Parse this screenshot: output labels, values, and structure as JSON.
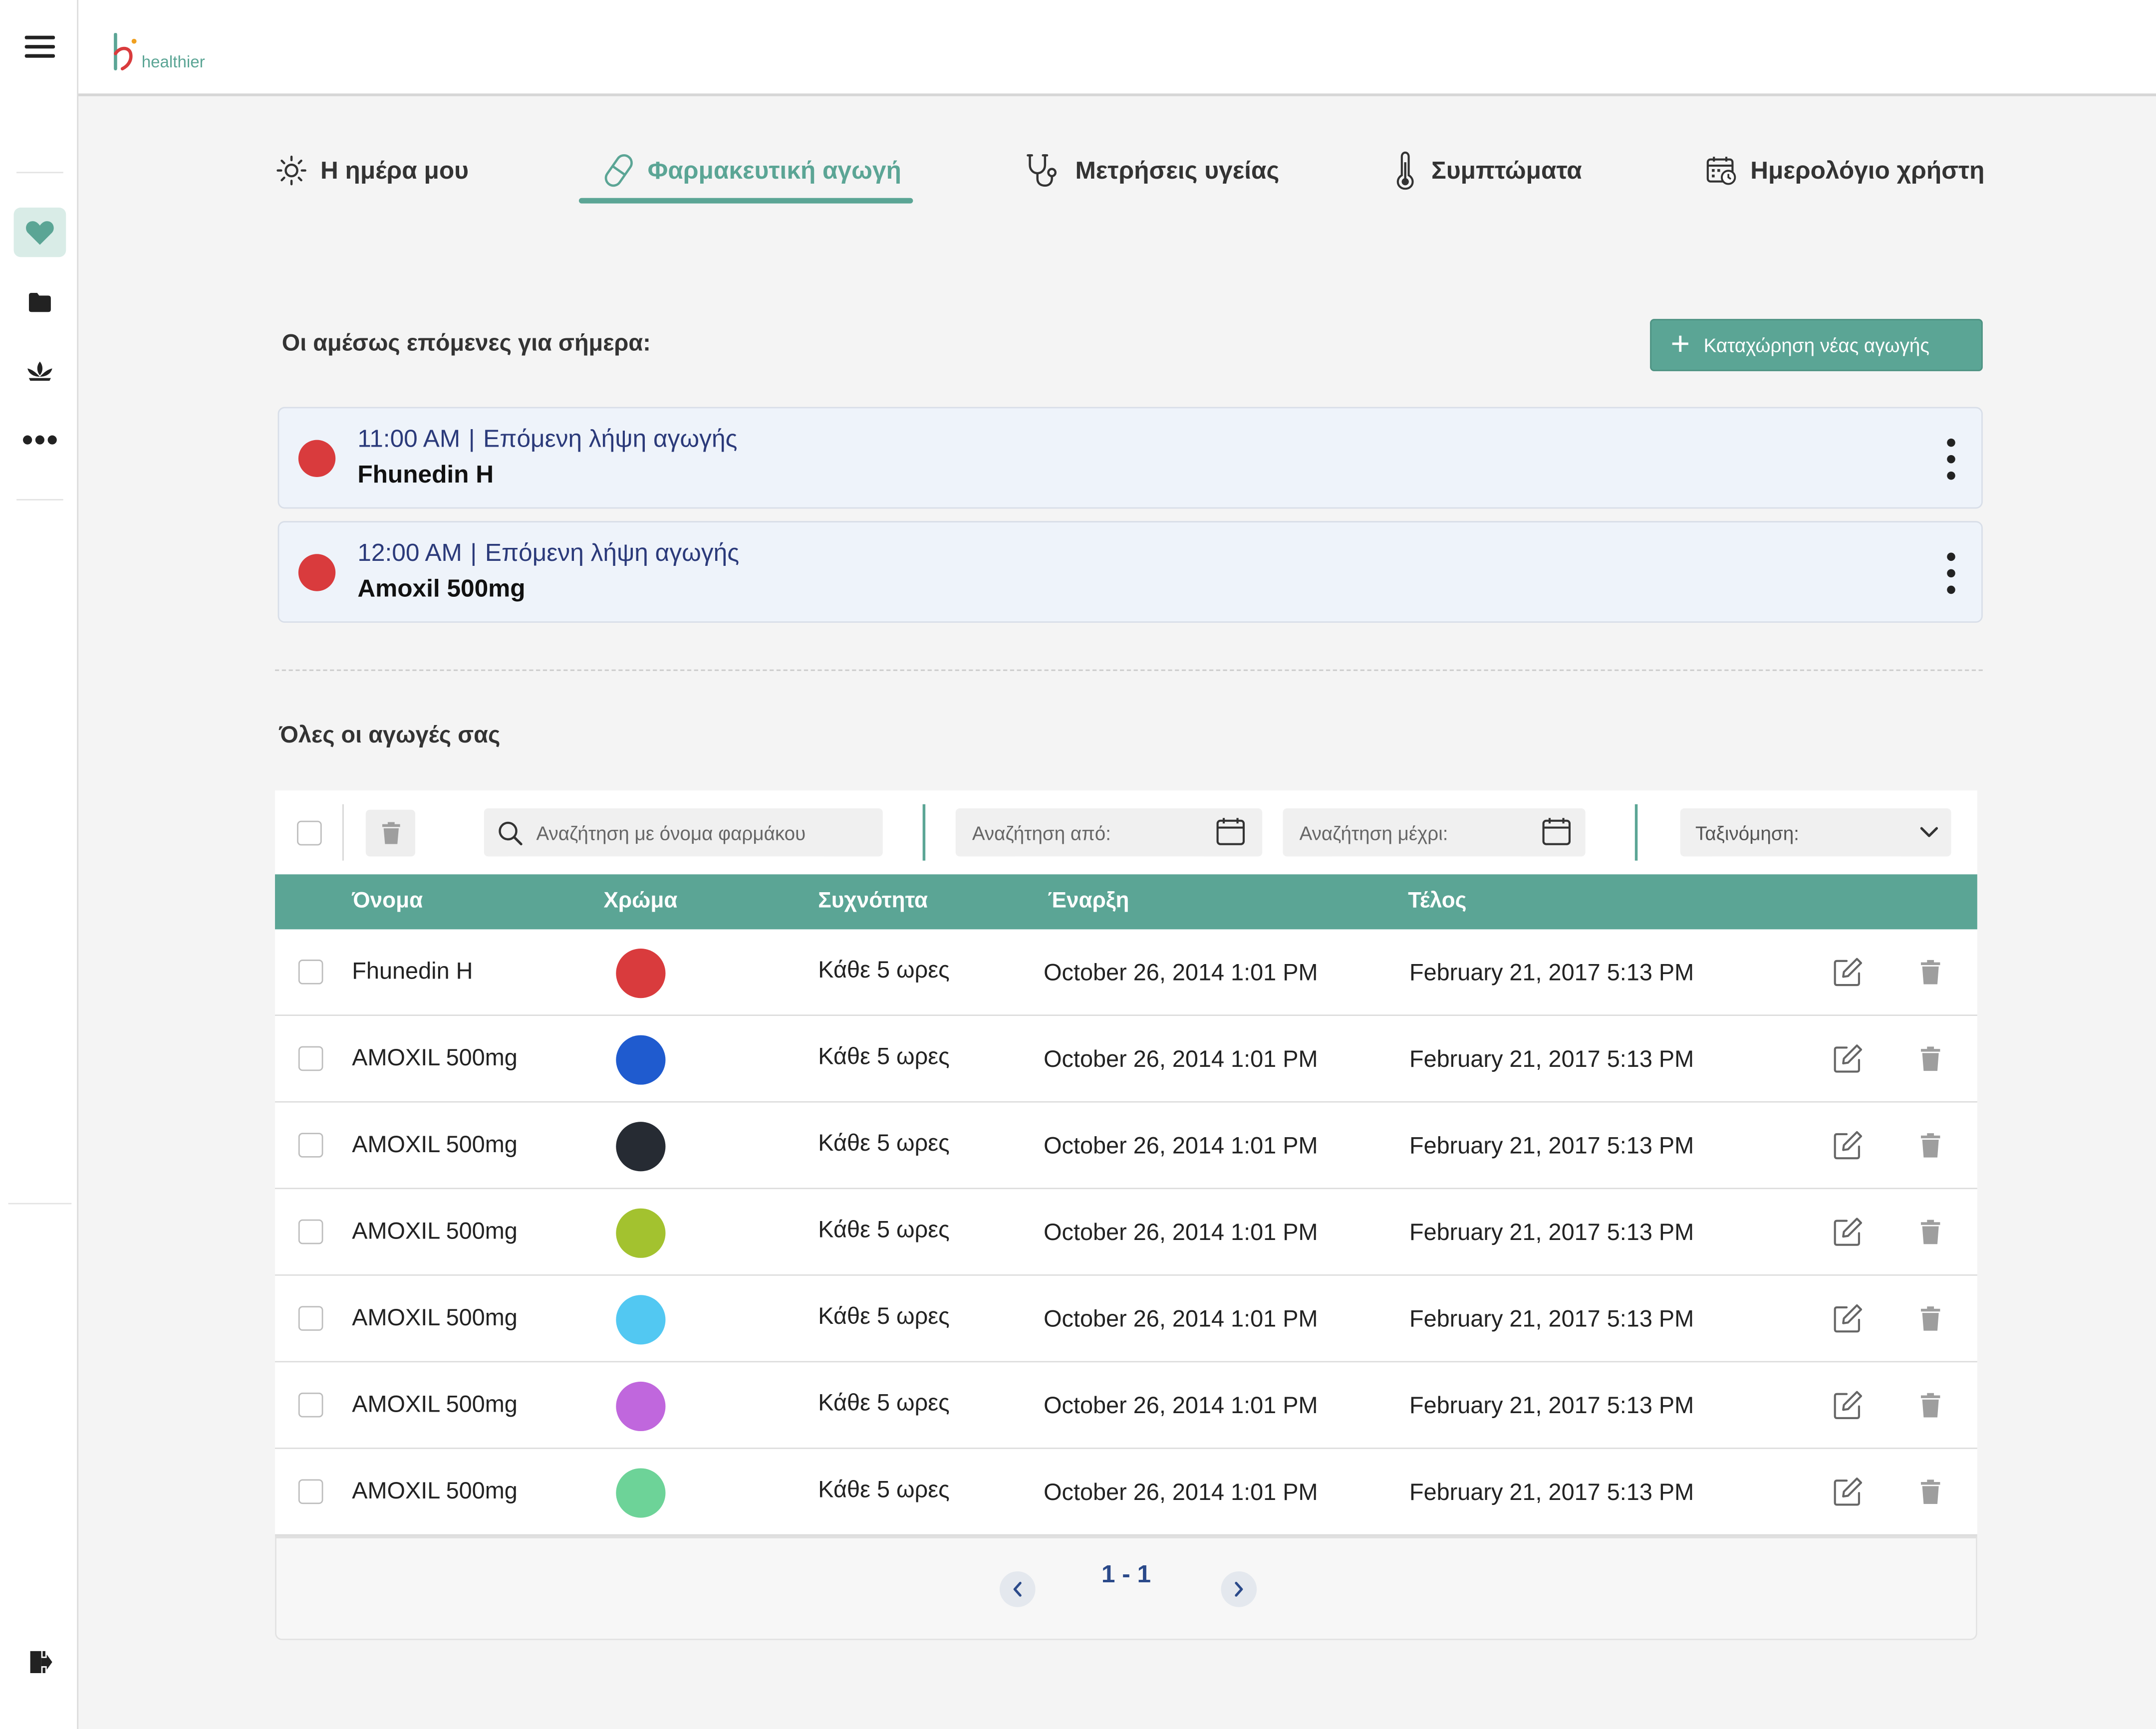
{
  "app": {
    "logo_text": "healthier"
  },
  "tabs": [
    {
      "label": "Η ημέρα μου",
      "icon": "sun-icon"
    },
    {
      "label": "Φαρμακευτική αγωγή",
      "icon": "pill-icon",
      "active": true
    },
    {
      "label": "Μετρήσεις υγείας",
      "icon": "stethoscope-icon"
    },
    {
      "label": "Συμπτώματα",
      "icon": "thermometer-icon"
    },
    {
      "label": "Ημερολόγιο χρήστη",
      "icon": "calendar-clock-icon"
    }
  ],
  "upcoming": {
    "title": "Οι αμέσως επόμενες για σήμερα:",
    "new_button_label": "Καταχώρηση νέας αγωγής",
    "items": [
      {
        "time": "11:00 AM",
        "separator": "|",
        "label": "Επόμενη λήψη αγωγής",
        "drug": "Fhunedin H",
        "color": "#d93b3d"
      },
      {
        "time": "12:00 AM",
        "separator": "|",
        "label": "Επόμενη λήψη αγωγής",
        "drug": "Amoxil 500mg",
        "color": "#d93b3d"
      }
    ]
  },
  "all": {
    "title": "Όλες οι αγωγές σας",
    "search_placeholder": "Αναζήτηση με όνομα φαρμάκου",
    "from_placeholder": "Αναζήτηση από:",
    "to_placeholder": "Αναζήτηση μέχρι:",
    "sort_label": "Ταξινόμηση:"
  },
  "table": {
    "columns": [
      "Όνομα",
      "Χρώμα",
      "Συχνότητα",
      "Έναρξη",
      "Τέλος"
    ],
    "rows": [
      {
        "name": "Fhunedin H",
        "color": "#d93b3d",
        "frequency": "Κάθε 5 ωρες",
        "start": "October 26, 2014 1:01 PM",
        "end": "February 21, 2017 5:13 PM"
      },
      {
        "name": "AMOXIL 500mg",
        "color": "#1f5bcf",
        "frequency": "Κάθε 5 ωρες",
        "start": "October 26, 2014 1:01 PM",
        "end": "February 21, 2017 5:13 PM"
      },
      {
        "name": "AMOXIL 500mg",
        "color": "#262b33",
        "frequency": "Κάθε 5 ωρες",
        "start": "October 26, 2014 1:01 PM",
        "end": "February 21, 2017 5:13 PM"
      },
      {
        "name": "AMOXIL 500mg",
        "color": "#a3c22f",
        "frequency": "Κάθε 5 ωρες",
        "start": "October 26, 2014 1:01 PM",
        "end": "February 21, 2017 5:13 PM"
      },
      {
        "name": "AMOXIL 500mg",
        "color": "#52c8f2",
        "frequency": "Κάθε 5 ωρες",
        "start": "October 26, 2014 1:01 PM",
        "end": "February 21, 2017 5:13 PM"
      },
      {
        "name": "AMOXIL 500mg",
        "color": "#c067dd",
        "frequency": "Κάθε 5 ωρες",
        "start": "October 26, 2014 1:01 PM",
        "end": "February 21, 2017 5:13 PM"
      },
      {
        "name": "AMOXIL 500mg",
        "color": "#6dd398",
        "frequency": "Κάθε 5 ωρες",
        "start": "October 26, 2014 1:01 PM",
        "end": "February 21, 2017 5:13 PM"
      }
    ]
  },
  "pagination": {
    "range": "1 - 1"
  },
  "colors": {
    "accent": "#5ba595",
    "upcoming_text": "#2b3a7a",
    "upcoming_bg": "#eef3fa"
  }
}
